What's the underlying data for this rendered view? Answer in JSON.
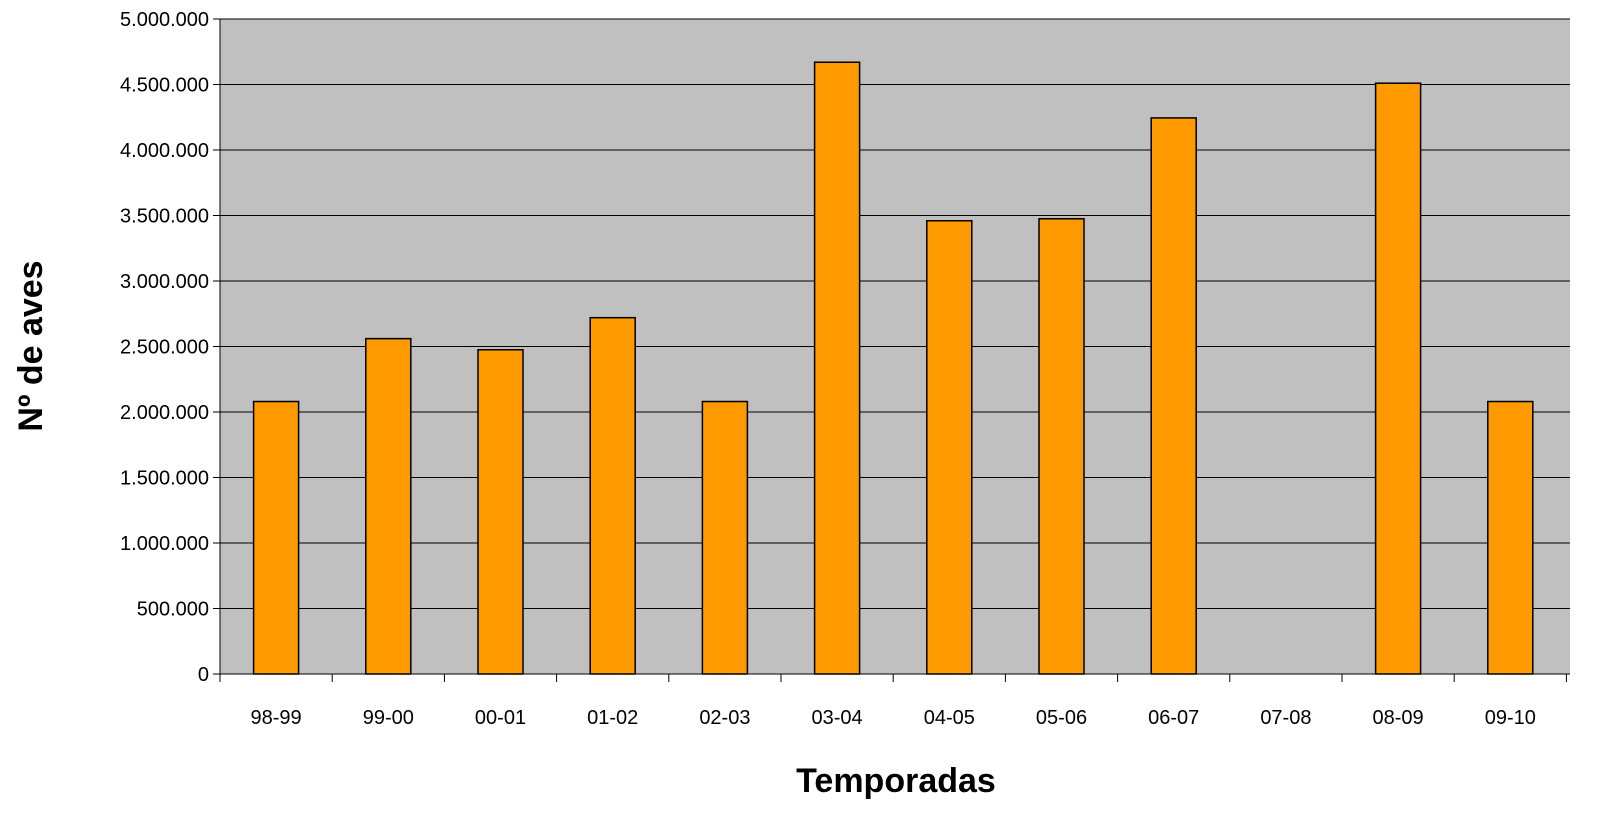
{
  "chart_data": {
    "type": "bar",
    "title": "",
    "xlabel": "Temporadas",
    "ylabel": "Nº de aves",
    "categories": [
      "98-99",
      "99-00",
      "00-01",
      "01-02",
      "02-03",
      "03-04",
      "04-05",
      "05-06",
      "06-07",
      "07-08",
      "08-09",
      "09-10"
    ],
    "values": [
      2080000,
      2560000,
      2475000,
      2720000,
      2080000,
      4670000,
      3460000,
      3475000,
      4245000,
      0,
      4510000,
      2080000
    ],
    "ylim": [
      0,
      5000000
    ],
    "yticks": [
      "0",
      "500.000",
      "1.000.000",
      "1.500.000",
      "2.000.000",
      "2.500.000",
      "3.000.000",
      "3.500.000",
      "4.000.000",
      "4.500.000",
      "5.000.000"
    ],
    "grid": true,
    "legend": "none",
    "colors": {
      "plot_background": "#c0c0c0",
      "bar_fill": "#ff9900",
      "bar_stroke": "#000000",
      "gridline": "#000000"
    }
  }
}
